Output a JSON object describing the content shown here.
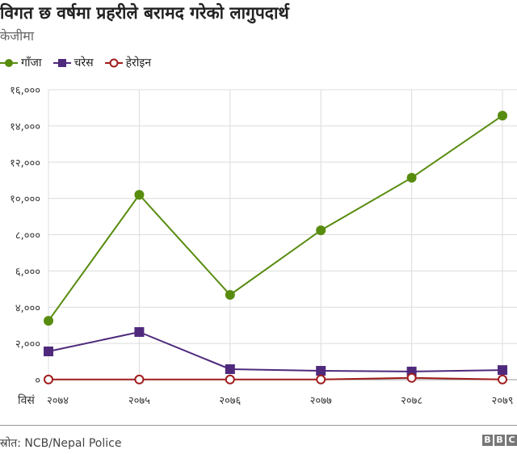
{
  "chart_data": {
    "type": "line",
    "title": "विगत छ वर्षमा प्रहरीले बरामद गरेको लागुपदार्थ",
    "subtitle": "केजीमा",
    "x_prefix": "विसं",
    "categories": [
      "२०७४",
      "२०७५",
      "२०७६",
      "२०७७",
      "२०७८",
      "२०७९"
    ],
    "ylim": [
      0,
      16000
    ],
    "yticks": [
      0,
      2000,
      4000,
      6000,
      8000,
      10000,
      12000,
      14000,
      16000
    ],
    "ytick_labels": [
      "०",
      "२,०००",
      "४,०००",
      "६,०००",
      "८,०००",
      "१०,०००",
      "१२,०००",
      "१४,०००",
      "१६,०००"
    ],
    "grid": true,
    "legend": "top-left",
    "series": [
      {
        "name": "गाँजा",
        "color": "#588c0f",
        "marker": "circle",
        "values": [
          3250,
          10200,
          4680,
          8240,
          11140,
          14570
        ]
      },
      {
        "name": "चरेस",
        "color": "#4f2a7c",
        "marker": "square",
        "values": [
          1560,
          2630,
          580,
          490,
          450,
          530
        ]
      },
      {
        "name": "हेरोइन",
        "color": "#a01c1c",
        "marker": "open-circle",
        "values": [
          10,
          10,
          10,
          10,
          100,
          10
        ]
      }
    ]
  },
  "footer": {
    "source": "स्रोत: NCB/Nepal Police",
    "logo": [
      "B",
      "B",
      "C"
    ]
  }
}
